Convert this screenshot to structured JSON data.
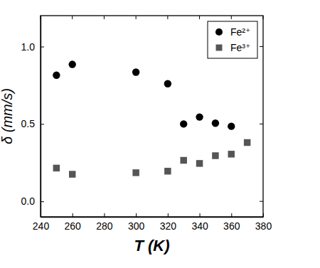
{
  "chart_data": {
    "type": "scatter",
    "x_label": "T (K)",
    "y_label": "δ (mm/s)",
    "xlim": [
      240,
      380
    ],
    "xticks": [
      240,
      260,
      280,
      300,
      320,
      340,
      360,
      380
    ],
    "ylim": [
      -0.1,
      1.2
    ],
    "yticks": [
      {
        "value": 0,
        "label": "0.0"
      },
      {
        "value": 0.5,
        "label": "0.5"
      },
      {
        "value": 1,
        "label": "1.0"
      }
    ],
    "legend": "upper right",
    "series": [
      {
        "name": "Fe²⁺",
        "color": "#000000",
        "marker": "circle",
        "x": [
          250,
          260,
          300,
          320,
          330,
          340,
          350,
          360
        ],
        "values": [
          0.815,
          0.885,
          0.835,
          0.76,
          0.5,
          0.545,
          0.505,
          0.485
        ]
      },
      {
        "name": "Fe³⁺",
        "color": "#555555",
        "marker": "square",
        "x": [
          250,
          260,
          300,
          320,
          330,
          340,
          350,
          360,
          370
        ],
        "values": [
          0.215,
          0.175,
          0.185,
          0.195,
          0.265,
          0.245,
          0.295,
          0.305,
          0.38
        ]
      }
    ]
  }
}
